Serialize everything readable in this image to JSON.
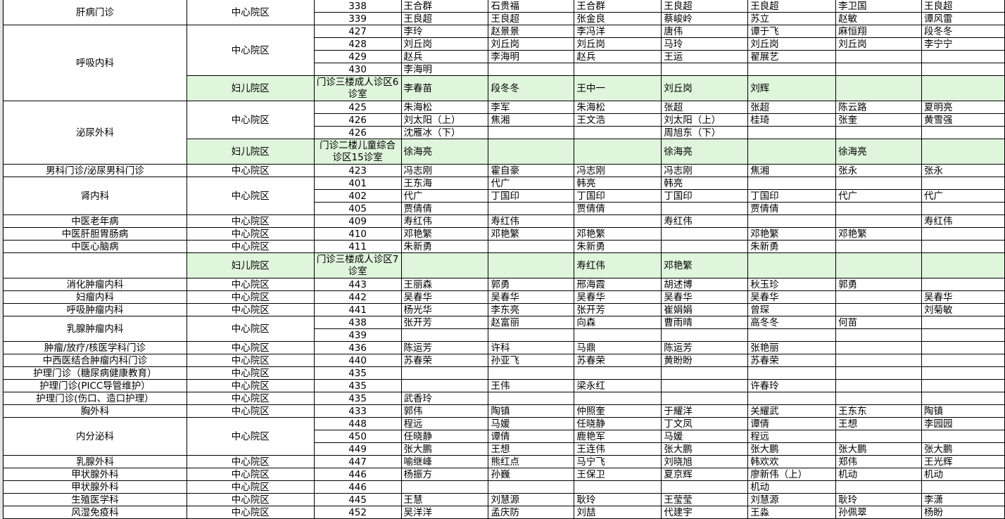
{
  "green_color": "#dff5dc",
  "groups": [
    {
      "dept": "肝病门诊",
      "blocks": [
        {
          "campus": "中心院区",
          "rows": [
            {
              "room": "338",
              "doctors": [
                "王合群",
                "石贵福",
                "王合群",
                "王良超",
                "王良超",
                "李卫国",
                "王良超"
              ]
            },
            {
              "room": "339",
              "doctors": [
                "王良超",
                "王良超",
                "张金良",
                "蔡峻岭",
                "苏立",
                "赵敏",
                "谭风雷"
              ]
            }
          ]
        }
      ]
    },
    {
      "dept": "呼吸内科",
      "blocks": [
        {
          "campus": "中心院区",
          "rows": [
            {
              "room": "427",
              "doctors": [
                "李玲",
                "赵景景",
                "李冯洋",
                "唐伟",
                "谭于飞",
                "麻恒翔",
                "段冬冬"
              ]
            },
            {
              "room": "428",
              "doctors": [
                "刘丘岗",
                "刘丘岗",
                "刘丘岗",
                "马玲",
                "刘丘岗",
                "刘丘岗",
                "李宁宁"
              ]
            },
            {
              "room": "429",
              "doctors": [
                "赵兵",
                "李海明",
                "赵兵",
                "王运",
                "翟展艺",
                "",
                ""
              ]
            },
            {
              "room": "430",
              "doctors": [
                "李海明",
                "",
                "",
                "",
                "",
                "",
                ""
              ]
            }
          ]
        },
        {
          "campus": "妇儿院区",
          "green": true,
          "rows": [
            {
              "room": "门诊三楼成人诊区6诊室",
              "doctors": [
                "李春苗",
                "段冬冬",
                "王中一",
                "刘丘岗",
                "刘辉",
                "",
                ""
              ]
            }
          ]
        }
      ]
    },
    {
      "dept": "泌尿外科",
      "blocks": [
        {
          "campus": "中心院区",
          "rows": [
            {
              "room": "425",
              "doctors": [
                "朱海松",
                "李军",
                "朱海松",
                "张超",
                "张超",
                "陈云路",
                "夏明亮"
              ]
            },
            {
              "room": "426",
              "doctors": [
                "刘太阳（上）",
                "焦湘",
                "王文浩",
                "刘太阳（上）",
                "桂琦",
                "张奎",
                "黄雪强"
              ]
            },
            {
              "room": "426",
              "doctors": [
                "沈雁冰（下）",
                "",
                "",
                "周旭东（下）",
                "",
                "",
                ""
              ]
            }
          ]
        },
        {
          "campus": "妇儿院区",
          "green": true,
          "rows": [
            {
              "room": "门诊二楼儿童综合诊区15诊室",
              "doctors": [
                "徐海亮",
                "",
                "",
                "徐海亮",
                "",
                "徐海亮",
                ""
              ]
            }
          ]
        }
      ]
    },
    {
      "dept": "男科门诊/泌尿男科门诊",
      "blocks": [
        {
          "campus": "中心院区",
          "rows": [
            {
              "room": "423",
              "doctors": [
                "冯志刚",
                "霍自豪",
                "冯志刚",
                "冯志刚",
                "焦湘",
                "张永",
                "张永"
              ]
            }
          ]
        }
      ]
    },
    {
      "dept": "肾内科",
      "blocks": [
        {
          "campus": "中心院区",
          "rows": [
            {
              "room": "401",
              "doctors": [
                "王东海",
                "代广",
                "韩亮",
                "韩亮",
                "",
                "",
                ""
              ]
            },
            {
              "room": "402",
              "doctors": [
                "代广",
                "丁国印",
                "丁国印",
                "丁国印",
                "丁国印",
                "代广",
                "代广"
              ]
            },
            {
              "room": "405",
              "doctors": [
                "贾倩倩",
                "",
                "贾倩倩",
                "",
                "贾倩倩",
                "",
                ""
              ]
            }
          ]
        }
      ]
    },
    {
      "dept": "中医老年病",
      "blocks": [
        {
          "campus": "中心院区",
          "rows": [
            {
              "room": "409",
              "doctors": [
                "寿红伟",
                "寿红伟",
                "",
                "寿红伟",
                "",
                "",
                "寿红伟"
              ]
            }
          ]
        }
      ]
    },
    {
      "dept": "中医肝胆胃肠病",
      "blocks": [
        {
          "campus": "中心院区",
          "rows": [
            {
              "room": "410",
              "doctors": [
                "邓艳繁",
                "邓艳繁",
                "邓艳繁",
                "",
                "邓艳繁",
                "邓艳繁",
                ""
              ]
            }
          ]
        }
      ]
    },
    {
      "dept": "中医心脑病",
      "blocks": [
        {
          "campus": "中心院区",
          "rows": [
            {
              "room": "411",
              "doctors": [
                "朱新勇",
                "",
                "朱新勇",
                "",
                "朱新勇",
                "",
                ""
              ]
            }
          ]
        }
      ]
    },
    {
      "dept": "",
      "blocks": [
        {
          "campus": "妇儿院区",
          "green": true,
          "rows": [
            {
              "room": "门诊三楼成人诊区7诊室",
              "doctors": [
                "",
                "",
                "寿红伟",
                "邓艳繁",
                "",
                "",
                ""
              ]
            }
          ]
        }
      ]
    },
    {
      "dept": "消化肿瘤内科",
      "blocks": [
        {
          "campus": "中心院区",
          "rows": [
            {
              "room": "443",
              "doctors": [
                "王丽森",
                "郭勇",
                "邢海霞",
                "胡述博",
                "秋玉珍",
                "郭勇",
                ""
              ]
            }
          ]
        }
      ]
    },
    {
      "dept": "妇瘤内科",
      "blocks": [
        {
          "campus": "中心院区",
          "rows": [
            {
              "room": "442",
              "doctors": [
                "吴春华",
                "吴春华",
                "吴春华",
                "吴春华",
                "吴春华",
                "",
                "吴春华"
              ]
            }
          ]
        }
      ]
    },
    {
      "dept": "呼吸肿瘤内科",
      "blocks": [
        {
          "campus": "中心院区",
          "rows": [
            {
              "room": "441",
              "doctors": [
                "杨光华",
                "李东亮",
                "张开芳",
                "崔娟娟",
                "曾琛",
                "",
                "刘菊敏"
              ]
            }
          ]
        }
      ]
    },
    {
      "dept": "乳腺肿瘤内科",
      "blocks": [
        {
          "campus": "中心院区",
          "rows": [
            {
              "room": "438",
              "doctors": [
                "张开芳",
                "赵富丽",
                "向森",
                "曹雨晴",
                "高冬冬",
                "何苗",
                ""
              ]
            },
            {
              "room": "439",
              "doctors": [
                "",
                "",
                "",
                "",
                "",
                "",
                ""
              ]
            }
          ]
        }
      ]
    },
    {
      "dept": "肿瘤/放疗/核医学科门诊",
      "blocks": [
        {
          "campus": "中心院区",
          "rows": [
            {
              "room": "436",
              "doctors": [
                "陈运芳",
                "许科",
                "马鼎",
                "陈运芳",
                "张艳丽",
                "",
                ""
              ]
            }
          ]
        }
      ]
    },
    {
      "dept": "中西医结合肿瘤内科门诊",
      "blocks": [
        {
          "campus": "中心院区",
          "rows": [
            {
              "room": "440",
              "doctors": [
                "苏春荣",
                "孙亚飞",
                "苏春荣",
                "黄盼盼",
                "苏春荣",
                "",
                ""
              ]
            }
          ]
        }
      ]
    },
    {
      "dept": "护理门诊（糖尿病健康教育）",
      "blocks": [
        {
          "campus": "中心院区",
          "rows": [
            {
              "room": "435",
              "doctors": [
                "",
                "",
                "",
                "",
                "",
                "",
                ""
              ]
            }
          ]
        }
      ]
    },
    {
      "dept": "护理门诊(PICC导管维护）",
      "blocks": [
        {
          "campus": "中心院区",
          "rows": [
            {
              "room": "435",
              "doctors": [
                "",
                "王伟",
                "梁永红",
                "",
                "许春玲",
                "",
                ""
              ]
            }
          ]
        }
      ]
    },
    {
      "dept": "护理门诊(伤口、造口护理）",
      "blocks": [
        {
          "campus": "中心院区",
          "rows": [
            {
              "room": "435",
              "doctors": [
                "武香玲",
                "",
                "",
                "",
                "",
                "",
                ""
              ]
            }
          ]
        }
      ]
    },
    {
      "dept": "胸外科",
      "blocks": [
        {
          "campus": "中心院区",
          "rows": [
            {
              "room": "433",
              "doctors": [
                "郭伟",
                "陶镇",
                "仲照奎",
                "于耀洋",
                "关耀武",
                "王东东",
                "陶镇"
              ]
            }
          ]
        }
      ]
    },
    {
      "dept": "内分泌科",
      "blocks": [
        {
          "campus": "中心院区",
          "rows": [
            {
              "room": "448",
              "doctors": [
                "程远",
                "马媛",
                "任晓静",
                "丁文凤",
                "谭倩",
                "王想",
                "李园园"
              ]
            },
            {
              "room": "450",
              "doctors": [
                "任晓静",
                "谭倩",
                "鹿艳军",
                "马媛",
                "程远",
                "",
                ""
              ]
            },
            {
              "room": "449",
              "doctors": [
                "张大鹏",
                "王想",
                "王连伟",
                "张大鹏",
                "张大鹏",
                "张大鹏",
                "张大鹏"
              ]
            }
          ]
        }
      ]
    },
    {
      "dept": "乳腺外科",
      "blocks": [
        {
          "campus": "中心院区",
          "rows": [
            {
              "room": "447",
              "doctors": [
                "喻继峰",
                "熊红点",
                "马宁飞",
                "刘晓旭",
                "韩欢欢",
                "郑伟",
                "王光辉"
              ]
            }
          ]
        }
      ]
    },
    {
      "dept": "甲状腺外科",
      "blocks": [
        {
          "campus": "中心院区",
          "rows": [
            {
              "room": "446",
              "doctors": [
                "杨振方",
                "孙巍",
                "王保卫",
                "夏京辉",
                "廖新伟（上）",
                "机动",
                "机动"
              ]
            }
          ]
        }
      ]
    },
    {
      "dept": "甲状腺外科",
      "blocks": [
        {
          "campus": "中心院区",
          "rows": [
            {
              "room": "446",
              "doctors": [
                "",
                "",
                "",
                "",
                "机动",
                "",
                ""
              ]
            }
          ]
        }
      ]
    },
    {
      "dept": "生殖医学科",
      "blocks": [
        {
          "campus": "中心院区",
          "rows": [
            {
              "room": "445",
              "doctors": [
                "王慧",
                "刘慧源",
                "耿玲",
                "王莹莹",
                "刘慧源",
                "耿玲",
                "李潇"
              ]
            }
          ]
        }
      ]
    },
    {
      "dept": "风湿免疫科",
      "blocks": [
        {
          "campus": "中心院区",
          "rows": [
            {
              "room": "452",
              "doctors": [
                "吴洋洋",
                "孟庆防",
                "刘喆",
                "代建宇",
                "王淼",
                "孙佩翠",
                "杨盼"
              ]
            }
          ]
        }
      ]
    }
  ]
}
